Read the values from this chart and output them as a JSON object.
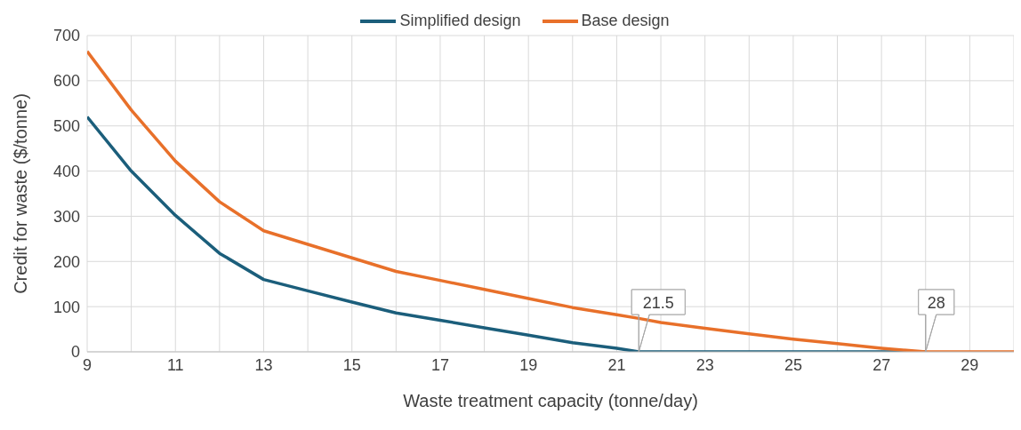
{
  "chart_data": {
    "type": "line",
    "xlabel": "Waste treatment capacity (tonne/day)",
    "ylabel": "Credit for waste ($/tonne)",
    "x": [
      9,
      10,
      11,
      12,
      13,
      14,
      15,
      16,
      17,
      18,
      19,
      20,
      21,
      21.5,
      22,
      23,
      24,
      25,
      26,
      27,
      28,
      29,
      30
    ],
    "series": [
      {
        "name": "Simplified design",
        "color": "#1b5e7b",
        "values": [
          520,
          400,
          302,
          218,
          160,
          135,
          110,
          86,
          70,
          53,
          37,
          20,
          8,
          0,
          0,
          0,
          0,
          0,
          0,
          0,
          0,
          null,
          null
        ]
      },
      {
        "name": "Base design",
        "color": "#e8702a",
        "values": [
          665,
          535,
          422,
          332,
          268,
          238,
          208,
          178,
          158,
          138,
          118,
          98,
          82,
          74,
          65,
          52,
          40,
          28,
          18,
          8,
          0,
          0,
          0
        ]
      }
    ],
    "xlim": [
      9,
      30
    ],
    "xticks": [
      9,
      {
        "value": 10,
        "label": null
      },
      11,
      {
        "value": 12,
        "label": null
      },
      13,
      {
        "value": 14,
        "label": null
      },
      15,
      {
        "value": 16,
        "label": null
      },
      17,
      {
        "value": 18,
        "label": null
      },
      19,
      {
        "value": 20,
        "label": null
      },
      21,
      {
        "value": 22,
        "label": null
      },
      23,
      {
        "value": 24,
        "label": null
      },
      25,
      {
        "value": 26,
        "label": null
      },
      27,
      {
        "value": 28,
        "label": null
      },
      29,
      {
        "value": 30,
        "label": null
      }
    ],
    "ylim": [
      0,
      700
    ],
    "yticks": [
      0,
      100,
      200,
      300,
      400,
      500,
      600,
      700
    ],
    "grid": true,
    "legend": "top",
    "marker": "none",
    "line_style": "solid",
    "annotations": [
      {
        "text": "21.5",
        "x": 21.5,
        "y": 0
      },
      {
        "text": "28",
        "x": 28,
        "y": 0
      }
    ]
  }
}
